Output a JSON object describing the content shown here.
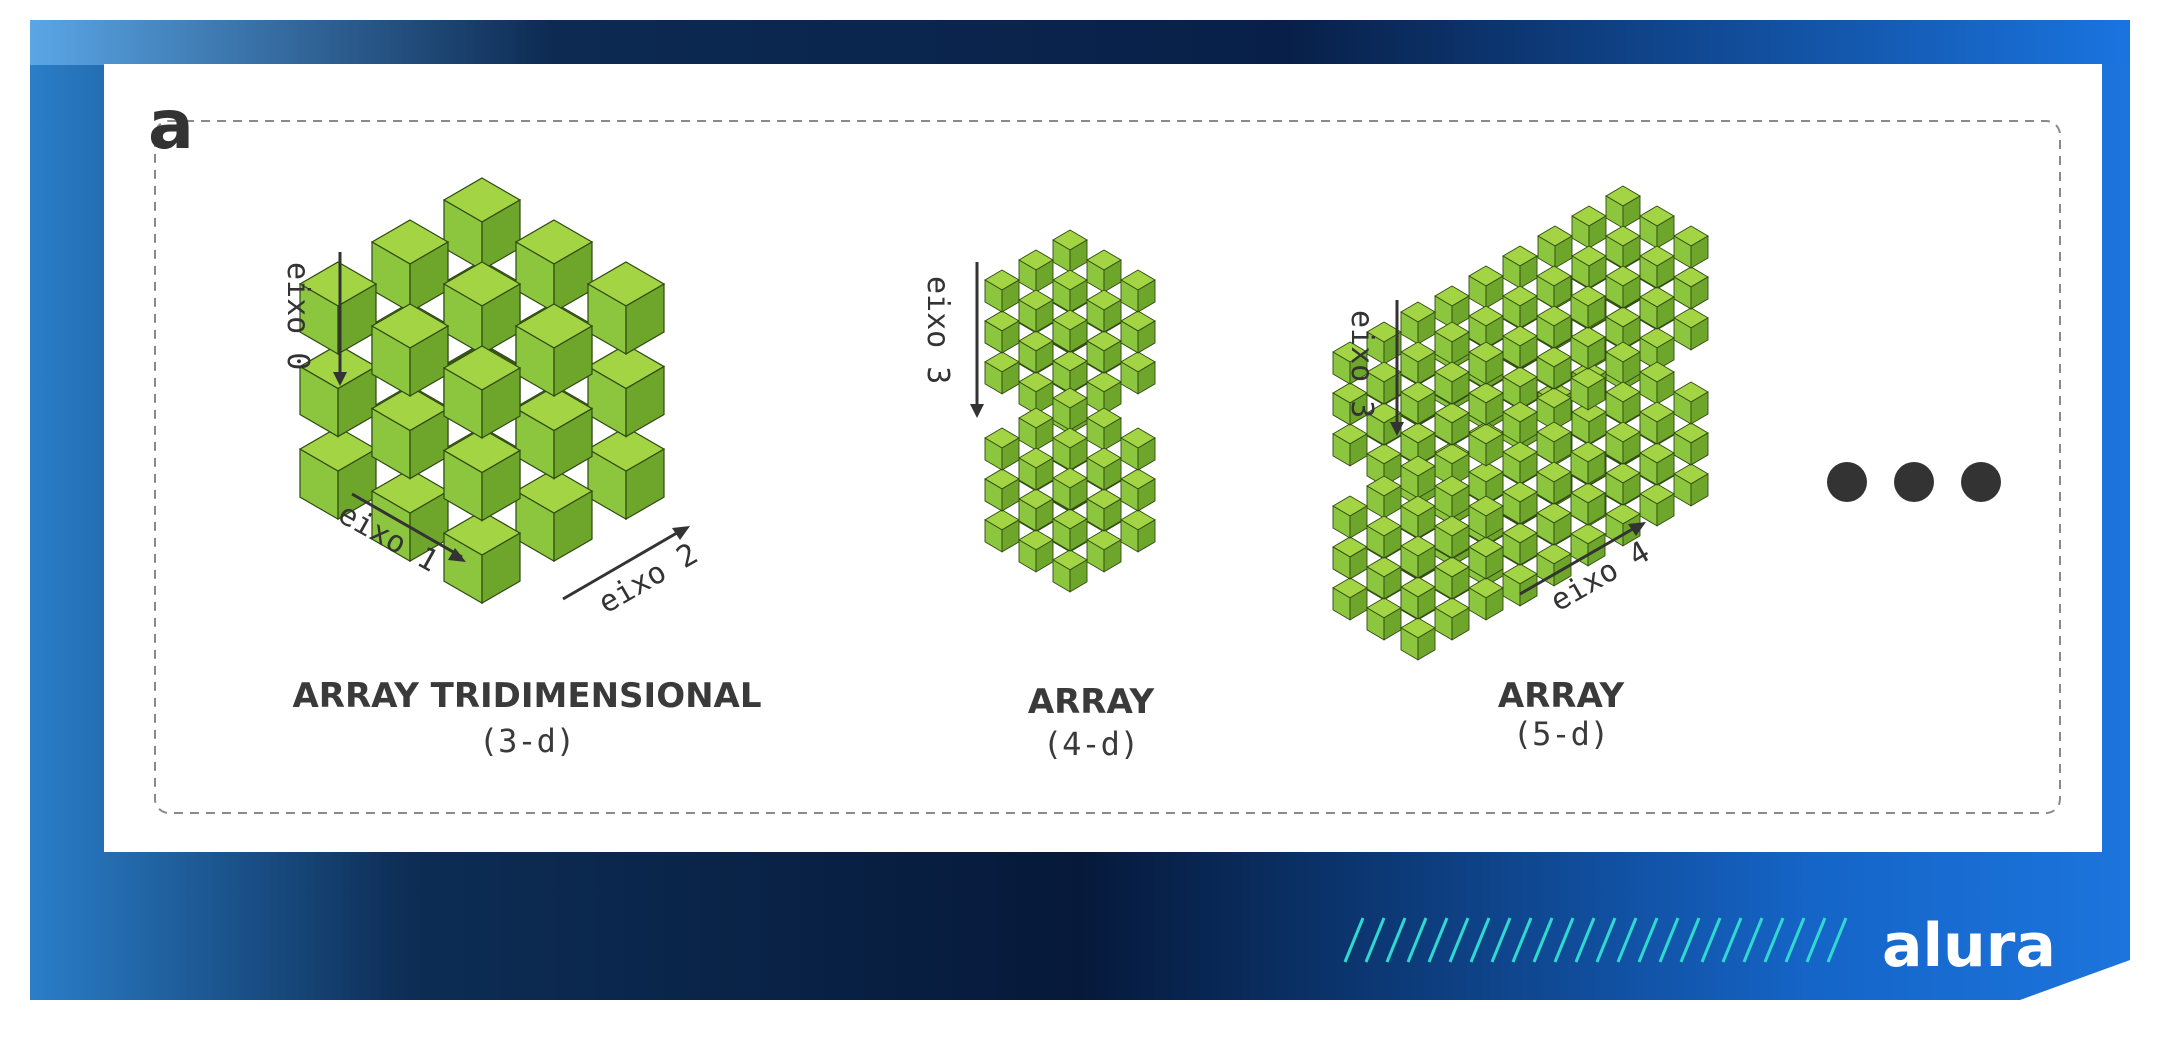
{
  "logo_mark": "a",
  "brand": "alura",
  "colors": {
    "frame_dark": "#0b2347",
    "frame_light": "#1a6fd6",
    "cube_top": "#9fd23f",
    "cube_left": "#8cc63f",
    "cube_right": "#6aa12a",
    "stripe": "#2fd9cf",
    "ink": "#333333"
  },
  "arrays": [
    {
      "title": "ARRAY TRIDIMENSIONAL",
      "subtitle": "(3-d)",
      "axes": [
        "eixo 0",
        "eixo 1",
        "eixo 2"
      ]
    },
    {
      "title": "ARRAY",
      "subtitle": "(4-d)",
      "axes": [
        "eixo 3"
      ]
    },
    {
      "title": "ARRAY",
      "subtitle": "(5-d)",
      "axes": [
        "eixo 3",
        "eixo 4"
      ]
    }
  ],
  "ellipsis": "more-dimensions-dots"
}
